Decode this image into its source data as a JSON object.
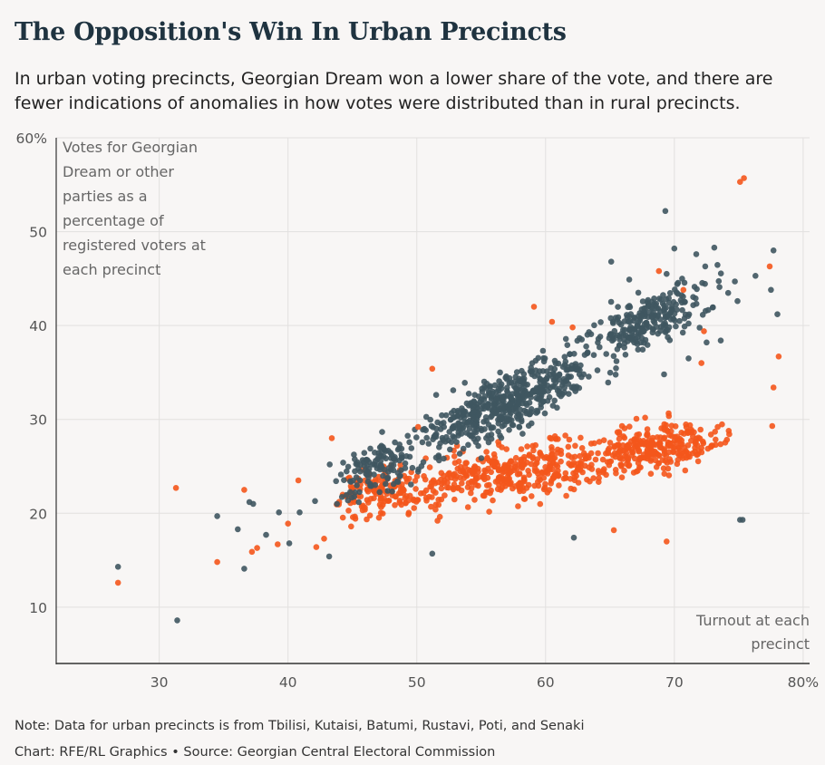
{
  "header": {
    "title": "The Opposition's Win In Urban Precincts",
    "subtitle": "In urban voting precincts, Georgian Dream won a lower share of the vote, and there are fewer indications of anomalies in how votes were distributed than in rural precincts."
  },
  "footer": {
    "note": "Note: Data for urban precincts is from Tbilisi, Kutaisi, Batumi, Rustavi, Poti, and Senaki",
    "credit": "Chart: RFE/RL Graphics • Source: Georgian Central Electoral Commission"
  },
  "chart_data": {
    "type": "scatter",
    "ylabel": "Votes for Georgian Dream or other parties as a percentage of registered voters at each precinct",
    "ylabel_lines": [
      "Votes for Georgian",
      "Dream or other",
      "parties as a",
      "percentage of",
      "registered voters at",
      "each precinct"
    ],
    "xlabel": "Turnout at each precinct",
    "xlabel_lines": [
      "Turnout at each",
      "precinct"
    ],
    "xlim": [
      22,
      80.5
    ],
    "ylim": [
      4,
      60
    ],
    "x_ticks": [
      30,
      40,
      50,
      60,
      70,
      80
    ],
    "x_tick_labels": [
      "30",
      "40",
      "50",
      "60",
      "70",
      "80%"
    ],
    "y_ticks": [
      10,
      20,
      30,
      40,
      50,
      60
    ],
    "y_tick_labels": [
      "10",
      "20",
      "30",
      "40",
      "50",
      "60%"
    ],
    "grid": true,
    "legend": "none",
    "colors": {
      "dark_series": "#3f5661",
      "orange_series": "#f4571c"
    },
    "series": [
      {
        "color": "#3f5661",
        "points": [
          [
            26.8,
            14.3
          ],
          [
            31.4,
            8.6
          ],
          [
            34.5,
            19.7
          ],
          [
            36.1,
            18.3
          ],
          [
            36.6,
            14.1
          ],
          [
            37.0,
            21.2
          ],
          [
            37.3,
            21.0
          ],
          [
            38.3,
            17.7
          ],
          [
            39.3,
            20.1
          ],
          [
            40.1,
            16.8
          ],
          [
            40.9,
            20.1
          ],
          [
            42.1,
            21.3
          ],
          [
            43.2,
            15.4
          ],
          [
            43.8,
            21.0
          ],
          [
            51.2,
            15.7
          ],
          [
            62.2,
            17.4
          ],
          [
            69.3,
            52.2
          ],
          [
            70.0,
            48.2
          ],
          [
            71.7,
            47.6
          ],
          [
            73.1,
            48.3
          ],
          [
            74.7,
            44.7
          ],
          [
            75.1,
            19.3
          ],
          [
            75.3,
            19.3
          ],
          [
            77.7,
            48.0
          ],
          [
            77.5,
            43.8
          ],
          [
            78.0,
            41.2
          ],
          [
            65.1,
            46.8
          ],
          [
            66.5,
            44.9
          ],
          [
            67.2,
            43.5
          ],
          [
            68.0,
            42.1
          ],
          [
            69.4,
            45.5
          ],
          [
            70.6,
            45.0
          ],
          [
            72.4,
            46.3
          ],
          [
            73.5,
            44.1
          ],
          [
            74.9,
            42.6
          ],
          [
            76.3,
            45.3
          ],
          [
            69.2,
            34.8
          ],
          [
            71.1,
            36.5
          ],
          [
            72.5,
            38.2
          ],
          [
            73.6,
            38.4
          ],
          [
            67.4,
            38.2
          ],
          [
            66.2,
            36.9
          ]
        ]
      },
      {
        "color": "#f4571c",
        "points": [
          [
            26.8,
            12.6
          ],
          [
            31.3,
            22.7
          ],
          [
            34.5,
            14.8
          ],
          [
            36.6,
            22.5
          ],
          [
            37.2,
            15.9
          ],
          [
            37.6,
            16.3
          ],
          [
            39.2,
            16.7
          ],
          [
            40.0,
            18.9
          ],
          [
            40.8,
            23.5
          ],
          [
            42.2,
            16.4
          ],
          [
            42.8,
            17.3
          ],
          [
            43.4,
            28.0
          ],
          [
            44.9,
            18.6
          ],
          [
            50.1,
            29.2
          ],
          [
            51.2,
            35.4
          ],
          [
            65.3,
            18.2
          ],
          [
            69.4,
            17.0
          ],
          [
            75.1,
            55.3
          ],
          [
            75.4,
            55.7
          ],
          [
            77.4,
            46.3
          ],
          [
            77.7,
            33.4
          ],
          [
            78.1,
            36.7
          ],
          [
            77.6,
            29.3
          ],
          [
            68.8,
            45.8
          ],
          [
            70.7,
            43.8
          ],
          [
            72.1,
            36.0
          ],
          [
            72.3,
            39.4
          ],
          [
            62.1,
            39.8
          ],
          [
            60.5,
            40.4
          ],
          [
            59.1,
            42.0
          ]
        ]
      }
    ]
  }
}
